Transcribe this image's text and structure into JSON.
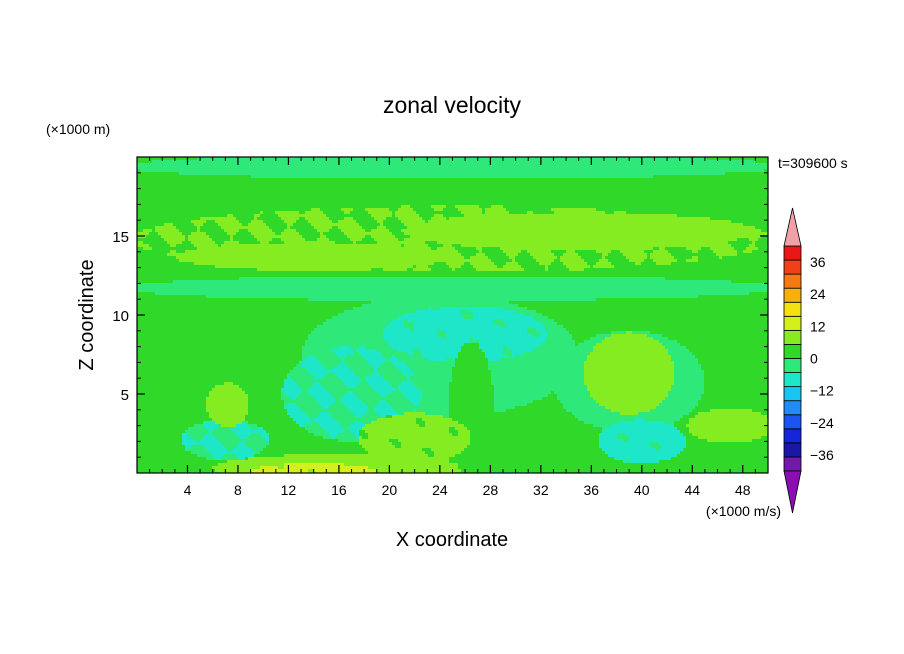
{
  "chart_data": {
    "type": "heatmap",
    "title": "zonal velocity",
    "xlabel": "X coordinate",
    "ylabel": "Z coordinate",
    "x_unit": "(×1000 m/s)",
    "y_unit": "(×1000 m)",
    "time_label": "t=309600 s",
    "xlim": [
      0,
      50
    ],
    "ylim": [
      0,
      20
    ],
    "x_ticks": [
      4,
      8,
      12,
      16,
      20,
      24,
      28,
      32,
      36,
      40,
      44,
      48
    ],
    "y_ticks": [
      5,
      10,
      15
    ],
    "colorbar": {
      "levels": [
        -42,
        -36,
        -30,
        -24,
        -18,
        -12,
        -6,
        0,
        6,
        12,
        18,
        24,
        30,
        36,
        42
      ],
      "tick_values": [
        -36,
        -24,
        -12,
        0,
        12,
        24,
        36
      ],
      "colors": [
        "#6f1aa8",
        "#1a16a6",
        "#1426d8",
        "#1c54f2",
        "#1f8cf7",
        "#19c4f2",
        "#1ee6c8",
        "#2ee87a",
        "#30d82a",
        "#86ec22",
        "#d2f01c",
        "#f5e012",
        "#f6b010",
        "#f77a10",
        "#f0401a",
        "#e81818"
      ],
      "under_color": "#8a0fb0",
      "over_color": "#f2a0a8"
    },
    "grid": false,
    "colors": {
      "background": "#ffffff",
      "axis": "#000000",
      "dominant_field": "#2ee87a"
    },
    "field_features": [
      {
        "type": "rect",
        "x": [
          0,
          50
        ],
        "y": [
          0,
          20
        ],
        "value": 2
      },
      {
        "type": "ellipse",
        "cx": 25,
        "cy": 19.4,
        "rx": 26,
        "ry": 0.8,
        "value": -3
      },
      {
        "type": "ellipse",
        "cx": 25,
        "cy": 14.8,
        "rx": 25.5,
        "ry": 2.1,
        "value": 6
      },
      {
        "type": "ellipse",
        "cx": 35,
        "cy": 15.3,
        "rx": 14,
        "ry": 1.2,
        "value": 9
      },
      {
        "type": "ellipse",
        "cx": 14,
        "cy": 13.7,
        "rx": 11,
        "ry": 0.9,
        "value": 9
      },
      {
        "type": "ellipse",
        "cx": 25,
        "cy": 11.7,
        "rx": 26,
        "ry": 0.8,
        "value": -3
      },
      {
        "type": "ellipse",
        "cx": 24,
        "cy": 7.4,
        "rx": 11,
        "ry": 3.9,
        "value": -4
      },
      {
        "type": "ellipse",
        "cx": 26,
        "cy": 8.8,
        "rx": 6.5,
        "ry": 1.8,
        "value": -7
      },
      {
        "type": "ellipse",
        "cx": 17,
        "cy": 5.0,
        "rx": 5.5,
        "ry": 3.0,
        "value": -6
      },
      {
        "type": "ellipse",
        "cx": 39,
        "cy": 5.8,
        "rx": 6,
        "ry": 3.2,
        "value": -3
      },
      {
        "type": "ellipse",
        "cx": 40,
        "cy": 2.0,
        "rx": 3.5,
        "ry": 1.4,
        "value": -7
      },
      {
        "type": "ellipse",
        "cx": 7,
        "cy": 2.1,
        "rx": 3.5,
        "ry": 1.3,
        "value": -6
      },
      {
        "type": "ellipse",
        "cx": 39,
        "cy": 6.3,
        "rx": 3.6,
        "ry": 2.6,
        "value": 9
      },
      {
        "type": "ellipse",
        "cx": 7.2,
        "cy": 4.3,
        "rx": 1.7,
        "ry": 1.4,
        "value": 9
      },
      {
        "type": "ellipse",
        "cx": 47,
        "cy": 3.0,
        "rx": 3.4,
        "ry": 1.1,
        "value": 9
      },
      {
        "type": "ellipse",
        "cx": 16,
        "cy": 0.3,
        "rx": 10,
        "ry": 0.9,
        "value": 10
      },
      {
        "type": "ellipse",
        "cx": 14,
        "cy": 0.1,
        "rx": 5,
        "ry": 0.5,
        "value": 13
      },
      {
        "type": "ellipse",
        "cx": 26.5,
        "cy": 4.0,
        "rx": 1.8,
        "ry": 4.3,
        "value": 3
      },
      {
        "type": "ellipse",
        "cx": 22,
        "cy": 2.2,
        "rx": 4.5,
        "ry": 1.6,
        "value": 7
      }
    ]
  }
}
